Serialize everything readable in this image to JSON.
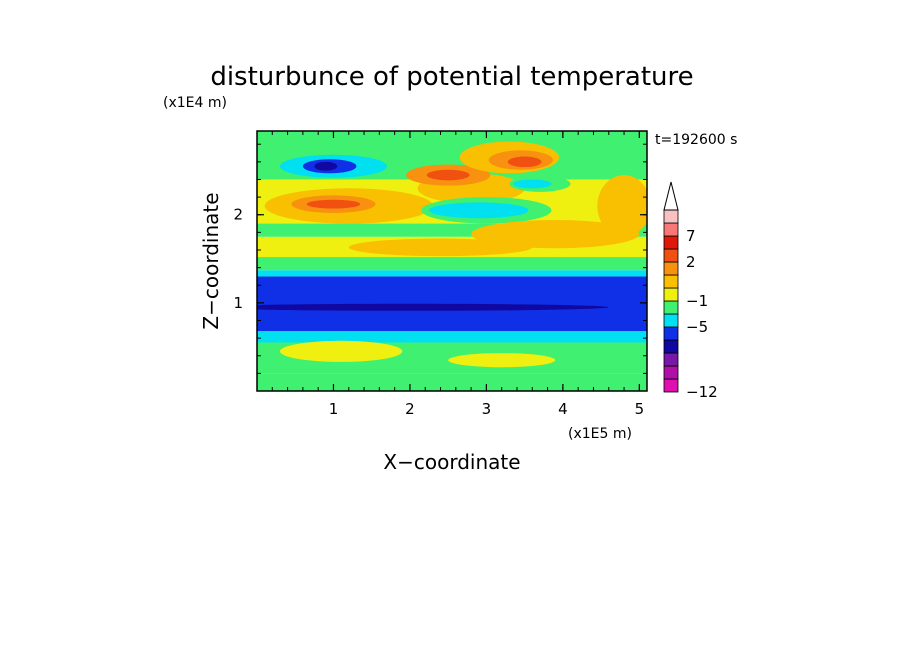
{
  "chart_data": {
    "type": "heatmap",
    "title": "disturbunce of potential temperature",
    "xlabel": "X−coordinate",
    "ylabel": "Z−coordinate",
    "x_unit": "(x1E5 m)",
    "y_unit": "(x1E4 m)",
    "time_label": "t=192600 s",
    "xlim": [
      0,
      5.1
    ],
    "ylim": [
      0,
      2.95
    ],
    "x_ticks": [
      1,
      2,
      3,
      4,
      5
    ],
    "x_tick_labels": [
      "1",
      "2",
      "3",
      "4",
      "5"
    ],
    "y_ticks": [
      1,
      2
    ],
    "y_tick_labels": [
      "1",
      "2"
    ],
    "colorbar": {
      "colors": [
        "#e010b0",
        "#b010a8",
        "#7818a8",
        "#1008a0",
        "#1030e8",
        "#00e0f0",
        "#40f070",
        "#f0f010",
        "#f8c000",
        "#f89010",
        "#f05010",
        "#e01808",
        "#f87878",
        "#f8c0c0"
      ],
      "tick_labels": [
        "-12",
        "-5",
        "-1",
        "2",
        "7"
      ],
      "tick_display": [
        "−12",
        "−5",
        "−1",
        "2",
        "7"
      ],
      "extend": "max"
    },
    "regions": [
      {
        "x0": 0,
        "x1": 5.1,
        "z0": 0,
        "z1": 0.2,
        "color": "#40f070"
      },
      {
        "x0": 0,
        "x1": 5.1,
        "z0": 0.2,
        "z1": 0.55,
        "color": "#40f070"
      },
      {
        "x0": 0,
        "x1": 5.1,
        "z0": 0.55,
        "z1": 0.68,
        "color": "#00e0f0"
      },
      {
        "x0": 0,
        "x1": 5.1,
        "z0": 0.68,
        "z1": 1.3,
        "color": "#1030e8"
      },
      {
        "x0": 0,
        "x1": 5.1,
        "z0": 1.3,
        "z1": 1.37,
        "color": "#00e0f0"
      },
      {
        "x0": 0,
        "x1": 5.1,
        "z0": 1.37,
        "z1": 1.52,
        "color": "#40f070"
      },
      {
        "x0": 0,
        "x1": 5.1,
        "z0": 1.52,
        "z1": 1.75,
        "color": "#f0f010"
      },
      {
        "x0": 0,
        "x1": 5.1,
        "z0": 1.75,
        "z1": 1.9,
        "color": "#40f070"
      },
      {
        "x0": 0,
        "x1": 5.1,
        "z0": 1.9,
        "z1": 2.4,
        "color": "#f0f010"
      },
      {
        "x0": 0,
        "x1": 5.1,
        "z0": 2.4,
        "z1": 2.95,
        "color": "#40f070"
      }
    ],
    "blobs": [
      {
        "cx": 1.1,
        "cz": 0.45,
        "rx": 0.8,
        "rz": 0.12,
        "color": "#f0f010"
      },
      {
        "cx": 3.2,
        "cz": 0.35,
        "rx": 0.7,
        "rz": 0.08,
        "color": "#f0f010"
      },
      {
        "cx": 2.0,
        "cz": 0.95,
        "rx": 2.6,
        "rz": 0.04,
        "color": "#1008a0"
      },
      {
        "cx": 1.2,
        "cz": 2.1,
        "rx": 1.1,
        "rz": 0.2,
        "color": "#f8c000"
      },
      {
        "cx": 1.0,
        "cz": 2.12,
        "rx": 0.55,
        "rz": 0.1,
        "color": "#f89010"
      },
      {
        "cx": 1.0,
        "cz": 2.12,
        "rx": 0.35,
        "rz": 0.05,
        "color": "#f05010"
      },
      {
        "cx": 1.0,
        "cz": 2.55,
        "rx": 0.7,
        "rz": 0.13,
        "color": "#00e0f0"
      },
      {
        "cx": 0.95,
        "cz": 2.55,
        "rx": 0.35,
        "rz": 0.08,
        "color": "#1030e8"
      },
      {
        "cx": 0.9,
        "cz": 2.55,
        "rx": 0.15,
        "rz": 0.05,
        "color": "#1008a0"
      },
      {
        "cx": 2.8,
        "cz": 2.3,
        "rx": 0.7,
        "rz": 0.17,
        "color": "#f8c000"
      },
      {
        "cx": 2.5,
        "cz": 2.45,
        "rx": 0.55,
        "rz": 0.12,
        "color": "#f89010"
      },
      {
        "cx": 2.5,
        "cz": 2.45,
        "rx": 0.28,
        "rz": 0.06,
        "color": "#f05010"
      },
      {
        "cx": 3.3,
        "cz": 2.65,
        "rx": 0.65,
        "rz": 0.18,
        "color": "#f8c000"
      },
      {
        "cx": 3.45,
        "cz": 2.62,
        "rx": 0.42,
        "rz": 0.11,
        "color": "#f89010"
      },
      {
        "cx": 3.5,
        "cz": 2.6,
        "rx": 0.22,
        "rz": 0.06,
        "color": "#f05010"
      },
      {
        "cx": 3.0,
        "cz": 2.05,
        "rx": 0.85,
        "rz": 0.15,
        "color": "#40f070"
      },
      {
        "cx": 2.9,
        "cz": 2.05,
        "rx": 0.65,
        "rz": 0.09,
        "color": "#00e0f0"
      },
      {
        "cx": 3.7,
        "cz": 2.35,
        "rx": 0.4,
        "rz": 0.09,
        "color": "#40f070"
      },
      {
        "cx": 3.6,
        "cz": 2.35,
        "rx": 0.25,
        "rz": 0.05,
        "color": "#00e0f0"
      },
      {
        "cx": 3.9,
        "cz": 1.78,
        "rx": 1.1,
        "rz": 0.16,
        "color": "#f8c000"
      },
      {
        "cx": 2.4,
        "cz": 1.63,
        "rx": 1.2,
        "rz": 0.1,
        "color": "#f8c000"
      },
      {
        "cx": 4.8,
        "cz": 2.1,
        "rx": 0.35,
        "rz": 0.35,
        "color": "#f8c000"
      }
    ]
  }
}
